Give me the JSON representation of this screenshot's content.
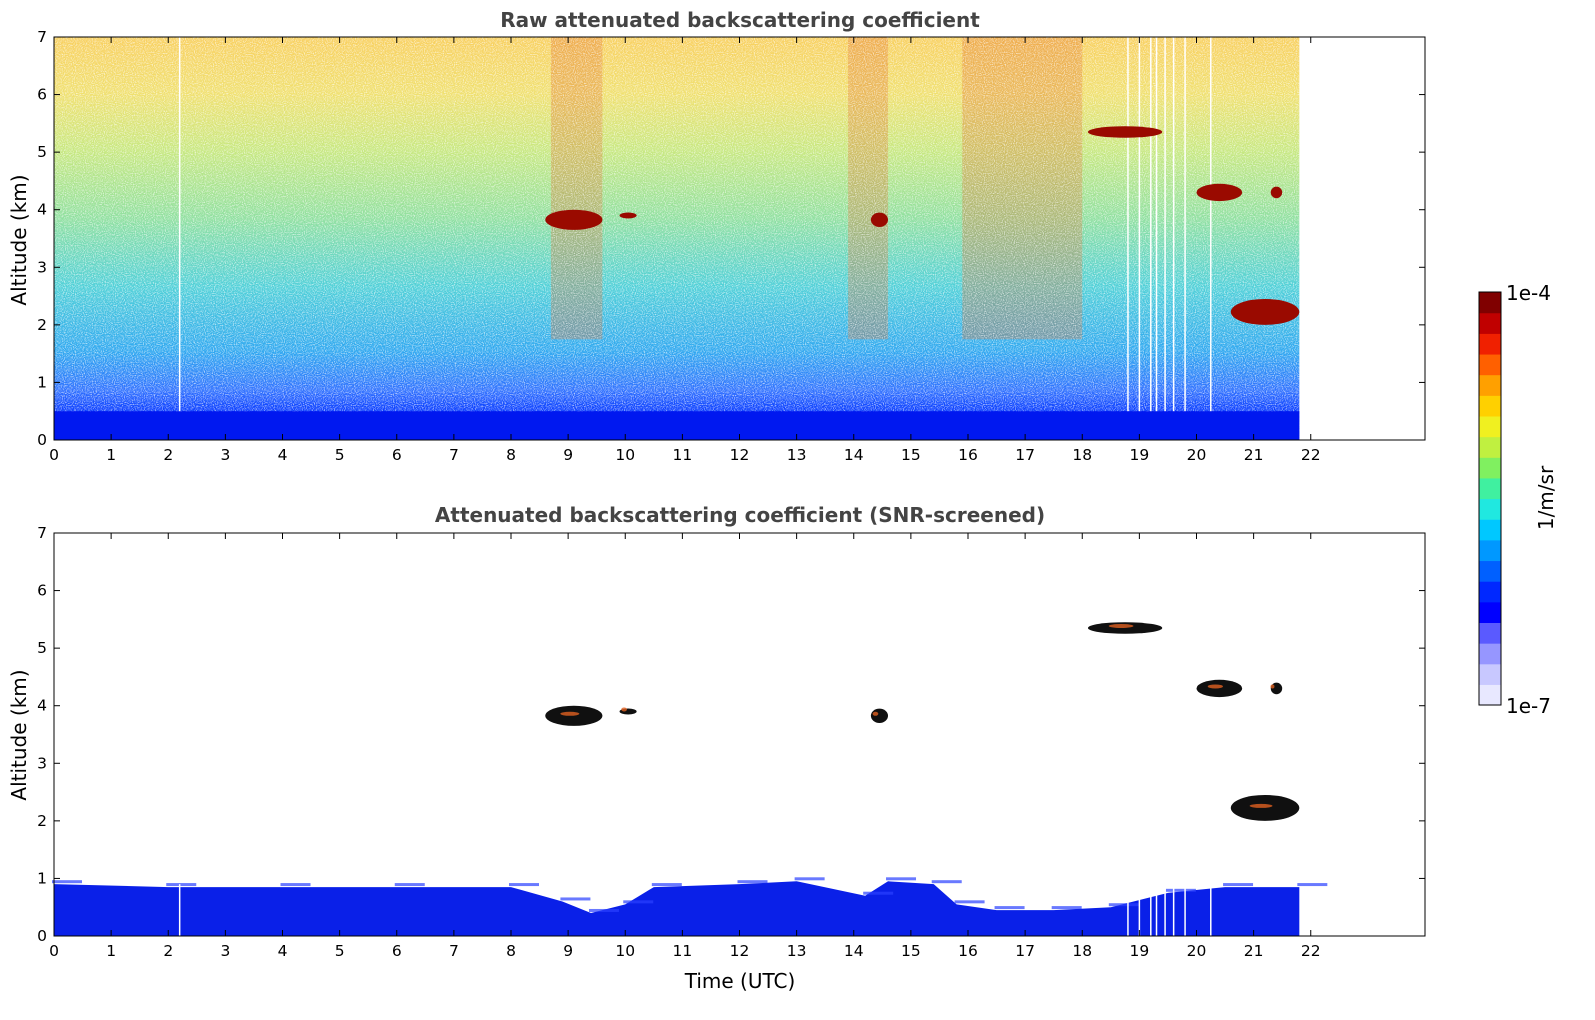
{
  "chart_data": [
    {
      "type": "heatmap",
      "title": "Raw attenuated backscattering coefficient",
      "xlabel": "",
      "ylabel": "Altitude (km)",
      "xlim": [
        0,
        24
      ],
      "ylim": [
        0,
        7
      ],
      "x_ticks": [
        "0",
        "1",
        "2",
        "3",
        "4",
        "5",
        "6",
        "7",
        "8",
        "9",
        "10",
        "11",
        "12",
        "13",
        "14",
        "15",
        "16",
        "17",
        "18",
        "19",
        "20",
        "21",
        "22"
      ],
      "y_ticks": [
        "0",
        "1",
        "2",
        "3",
        "4",
        "5",
        "6",
        "7"
      ],
      "data_extent_hours": [
        0,
        21.8
      ],
      "colormap": "jet",
      "features": [
        {
          "name": "boundary layer",
          "x_range": [
            0,
            21.8
          ],
          "altitude_range": [
            0,
            0.5
          ],
          "level": "low"
        },
        {
          "name": "cloud",
          "x_range": [
            8.6,
            9.6
          ],
          "altitude_range": [
            3.65,
            4.0
          ],
          "level": "high"
        },
        {
          "name": "cloud",
          "x_range": [
            9.9,
            10.2
          ],
          "altitude_range": [
            3.85,
            3.95
          ],
          "level": "high"
        },
        {
          "name": "cloud",
          "x_range": [
            14.3,
            14.6
          ],
          "altitude_range": [
            3.7,
            3.95
          ],
          "level": "high"
        },
        {
          "name": "cloud",
          "x_range": [
            18.1,
            19.4
          ],
          "altitude_range": [
            5.25,
            5.45
          ],
          "level": "high"
        },
        {
          "name": "cloud",
          "x_range": [
            20.0,
            20.8
          ],
          "altitude_range": [
            4.15,
            4.45
          ],
          "level": "high"
        },
        {
          "name": "cloud",
          "x_range": [
            21.3,
            21.5
          ],
          "altitude_range": [
            4.2,
            4.4
          ],
          "level": "high"
        },
        {
          "name": "cloud",
          "x_range": [
            20.6,
            21.8
          ],
          "altitude_range": [
            2.0,
            2.45
          ],
          "level": "high"
        }
      ]
    },
    {
      "type": "heatmap",
      "title": "Attenuated backscattering coefficient (SNR-screened)",
      "xlabel": "Time (UTC)",
      "ylabel": "Altitude (km)",
      "xlim": [
        0,
        24
      ],
      "ylim": [
        0,
        7
      ],
      "x_ticks": [
        "0",
        "1",
        "2",
        "3",
        "4",
        "5",
        "6",
        "7",
        "8",
        "9",
        "10",
        "11",
        "12",
        "13",
        "14",
        "15",
        "16",
        "17",
        "18",
        "19",
        "20",
        "21",
        "22"
      ],
      "y_ticks": [
        "0",
        "1",
        "2",
        "3",
        "4",
        "5",
        "6",
        "7"
      ],
      "data_extent_hours": [
        0,
        21.8
      ],
      "colormap": "jet",
      "boundary_layer_top_km": [
        [
          0,
          0.9
        ],
        [
          2,
          0.85
        ],
        [
          4,
          0.85
        ],
        [
          6,
          0.85
        ],
        [
          8,
          0.85
        ],
        [
          8.9,
          0.6
        ],
        [
          9.4,
          0.4
        ],
        [
          10,
          0.55
        ],
        [
          10.5,
          0.85
        ],
        [
          12,
          0.9
        ],
        [
          13,
          0.95
        ],
        [
          14.2,
          0.7
        ],
        [
          14.6,
          0.95
        ],
        [
          15.4,
          0.9
        ],
        [
          15.8,
          0.55
        ],
        [
          16.5,
          0.45
        ],
        [
          17.5,
          0.45
        ],
        [
          18.5,
          0.5
        ],
        [
          19.5,
          0.75
        ],
        [
          20.5,
          0.85
        ],
        [
          21.8,
          0.85
        ]
      ]
    }
  ],
  "colorbar": {
    "label": "1/m/sr",
    "max_label": "1e-4",
    "min_label": "1e-7",
    "colors": [
      "#e8e8ff",
      "#c8c8ff",
      "#9696ff",
      "#5a5aff",
      "#0000ff",
      "#0028ff",
      "#0060ff",
      "#0098ff",
      "#00c8ff",
      "#20e8e0",
      "#40f0a0",
      "#80f060",
      "#c0f040",
      "#f0f020",
      "#ffd000",
      "#ffa000",
      "#ff6000",
      "#f02000",
      "#c00000",
      "#800000"
    ]
  }
}
